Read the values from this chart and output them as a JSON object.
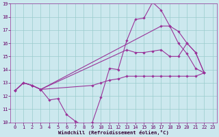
{
  "xlabel": "Windchill (Refroidissement éolien,°C)",
  "bg_color": "#cce8ee",
  "grid_color": "#99cccc",
  "line_color": "#993399",
  "xlim": [
    -0.5,
    23.5
  ],
  "ylim": [
    10,
    19
  ],
  "yticks": [
    10,
    11,
    12,
    13,
    14,
    15,
    16,
    17,
    18,
    19
  ],
  "xticks": [
    0,
    1,
    2,
    3,
    4,
    5,
    6,
    7,
    8,
    9,
    10,
    11,
    12,
    13,
    14,
    15,
    16,
    17,
    18,
    19,
    20,
    21,
    22,
    23
  ],
  "series": [
    {
      "x": [
        0,
        1,
        2,
        3,
        4,
        5,
        6,
        7,
        8,
        9,
        10,
        11,
        12,
        13,
        14,
        15,
        16,
        17,
        18,
        19,
        20,
        21,
        22
      ],
      "y": [
        12.4,
        13.0,
        12.8,
        12.5,
        11.7,
        11.8,
        10.6,
        10.1,
        9.75,
        10.0,
        11.9,
        14.1,
        14.0,
        16.2,
        17.8,
        17.9,
        19.1,
        18.5,
        17.3,
        16.0,
        15.2,
        14.1,
        13.75
      ]
    },
    {
      "x": [
        0,
        1,
        2,
        3,
        17,
        18,
        19,
        20,
        21,
        22
      ],
      "y": [
        12.4,
        13.0,
        12.8,
        12.5,
        17.3,
        17.3,
        16.9,
        16.0,
        15.3,
        13.75
      ]
    },
    {
      "x": [
        0,
        1,
        2,
        3,
        13,
        14,
        15,
        16,
        17,
        18,
        19,
        20,
        21,
        22
      ],
      "y": [
        12.4,
        13.0,
        12.8,
        12.5,
        15.5,
        15.3,
        15.3,
        15.4,
        15.5,
        15.0,
        15.0,
        16.0,
        15.3,
        13.75
      ]
    },
    {
      "x": [
        0,
        1,
        2,
        3,
        9,
        10,
        11,
        12,
        13,
        14,
        15,
        16,
        17,
        18,
        19,
        20,
        21,
        22
      ],
      "y": [
        12.4,
        13.0,
        12.8,
        12.5,
        12.8,
        13.0,
        13.2,
        13.3,
        13.5,
        13.5,
        13.5,
        13.5,
        13.5,
        13.5,
        13.5,
        13.5,
        13.5,
        13.75
      ]
    }
  ]
}
